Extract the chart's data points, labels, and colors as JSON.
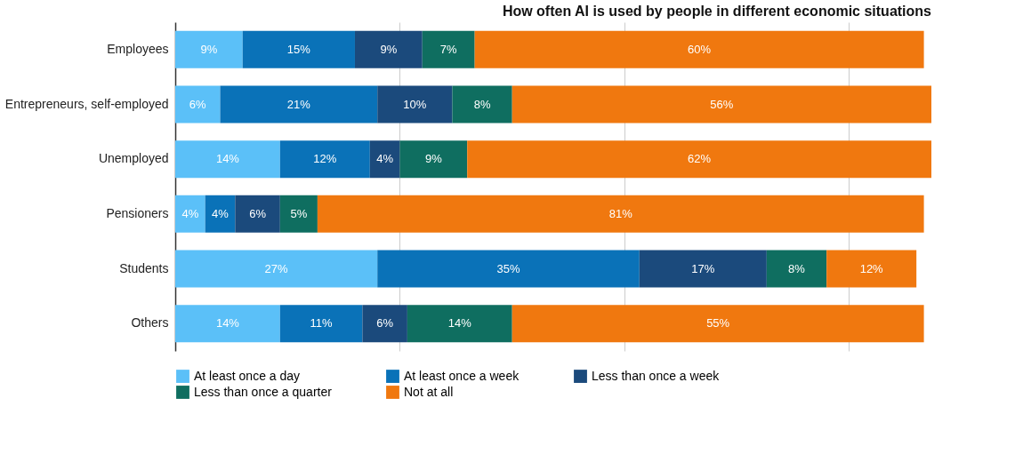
{
  "chart_data": {
    "type": "bar",
    "orientation": "horizontal",
    "stacked": true,
    "title": "How often AI is used by people in different economic situations",
    "categories": [
      "Employees",
      "Entrepreneurs, self-employed",
      "Unemployed",
      "Pensioners",
      "Students",
      "Others"
    ],
    "series": [
      {
        "name": "At least once a day",
        "color": "#5bc0f8",
        "values": [
          9,
          6,
          14,
          4,
          27,
          14
        ],
        "value_labels": [
          "9%",
          "6%",
          "14%",
          "4%",
          "27%",
          "14%"
        ]
      },
      {
        "name": "At least once a week",
        "color": "#0a72b8",
        "values": [
          15,
          21,
          12,
          4,
          35,
          11
        ],
        "value_labels": [
          "15%",
          "21%",
          "12%",
          "4%",
          "35%",
          "11%"
        ]
      },
      {
        "name": "Less than once a week",
        "color": "#1b4a7c",
        "values": [
          9,
          10,
          4,
          6,
          17,
          6
        ],
        "value_labels": [
          "9%",
          "10%",
          "4%",
          "6%",
          "17%",
          "6%"
        ]
      },
      {
        "name": "Less than once a quarter",
        "color": "#0f6e60",
        "values": [
          7,
          8,
          9,
          5,
          8,
          14
        ],
        "value_labels": [
          "7%",
          "8%",
          "9%",
          "5%",
          "8%",
          "14%"
        ]
      },
      {
        "name": "Not at all",
        "color": "#f0780f",
        "values": [
          60,
          56,
          62,
          81,
          12,
          55
        ],
        "value_labels": [
          "60%",
          "56%",
          "62%",
          "81%",
          "12%",
          "55%"
        ]
      }
    ],
    "xlim": [
      0,
      101
    ],
    "xticks": [
      {
        "value": 30,
        "label": null
      },
      {
        "value": 60,
        "label": null
      },
      {
        "value": 90,
        "label": null
      }
    ],
    "grid": "x",
    "tick_labels": "y",
    "legend": "bottom"
  }
}
